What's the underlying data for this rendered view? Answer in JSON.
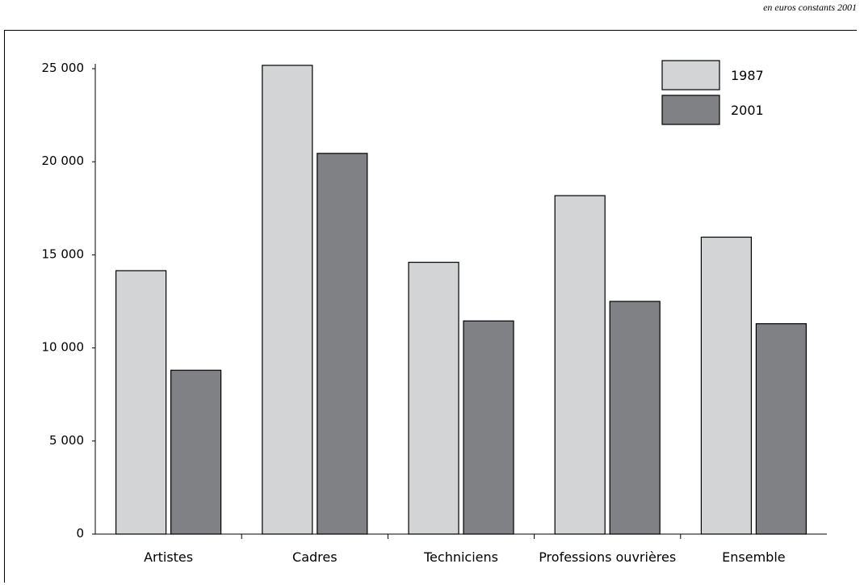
{
  "unit_note": "en euros constants 2001",
  "chart_data": {
    "type": "bar",
    "categories": [
      "Artistes",
      "Cadres",
      "Techniciens",
      "Professions ouvrières",
      "Ensemble"
    ],
    "series": [
      {
        "name": "1987",
        "values": [
          14150,
          25180,
          14600,
          18180,
          15950
        ],
        "color": "#d3d4d6"
      },
      {
        "name": "2001",
        "values": [
          8800,
          20450,
          11450,
          12500,
          11300
        ],
        "color": "#808184"
      }
    ],
    "ylim": [
      0,
      25000
    ],
    "yticks": [
      0,
      5000,
      10000,
      15000,
      20000,
      25000
    ],
    "ytick_labels": [
      "0",
      "5 000",
      "10 000",
      "15 000",
      "20 000",
      "25 000"
    ],
    "grid": false,
    "legend_position": "top-right"
  }
}
